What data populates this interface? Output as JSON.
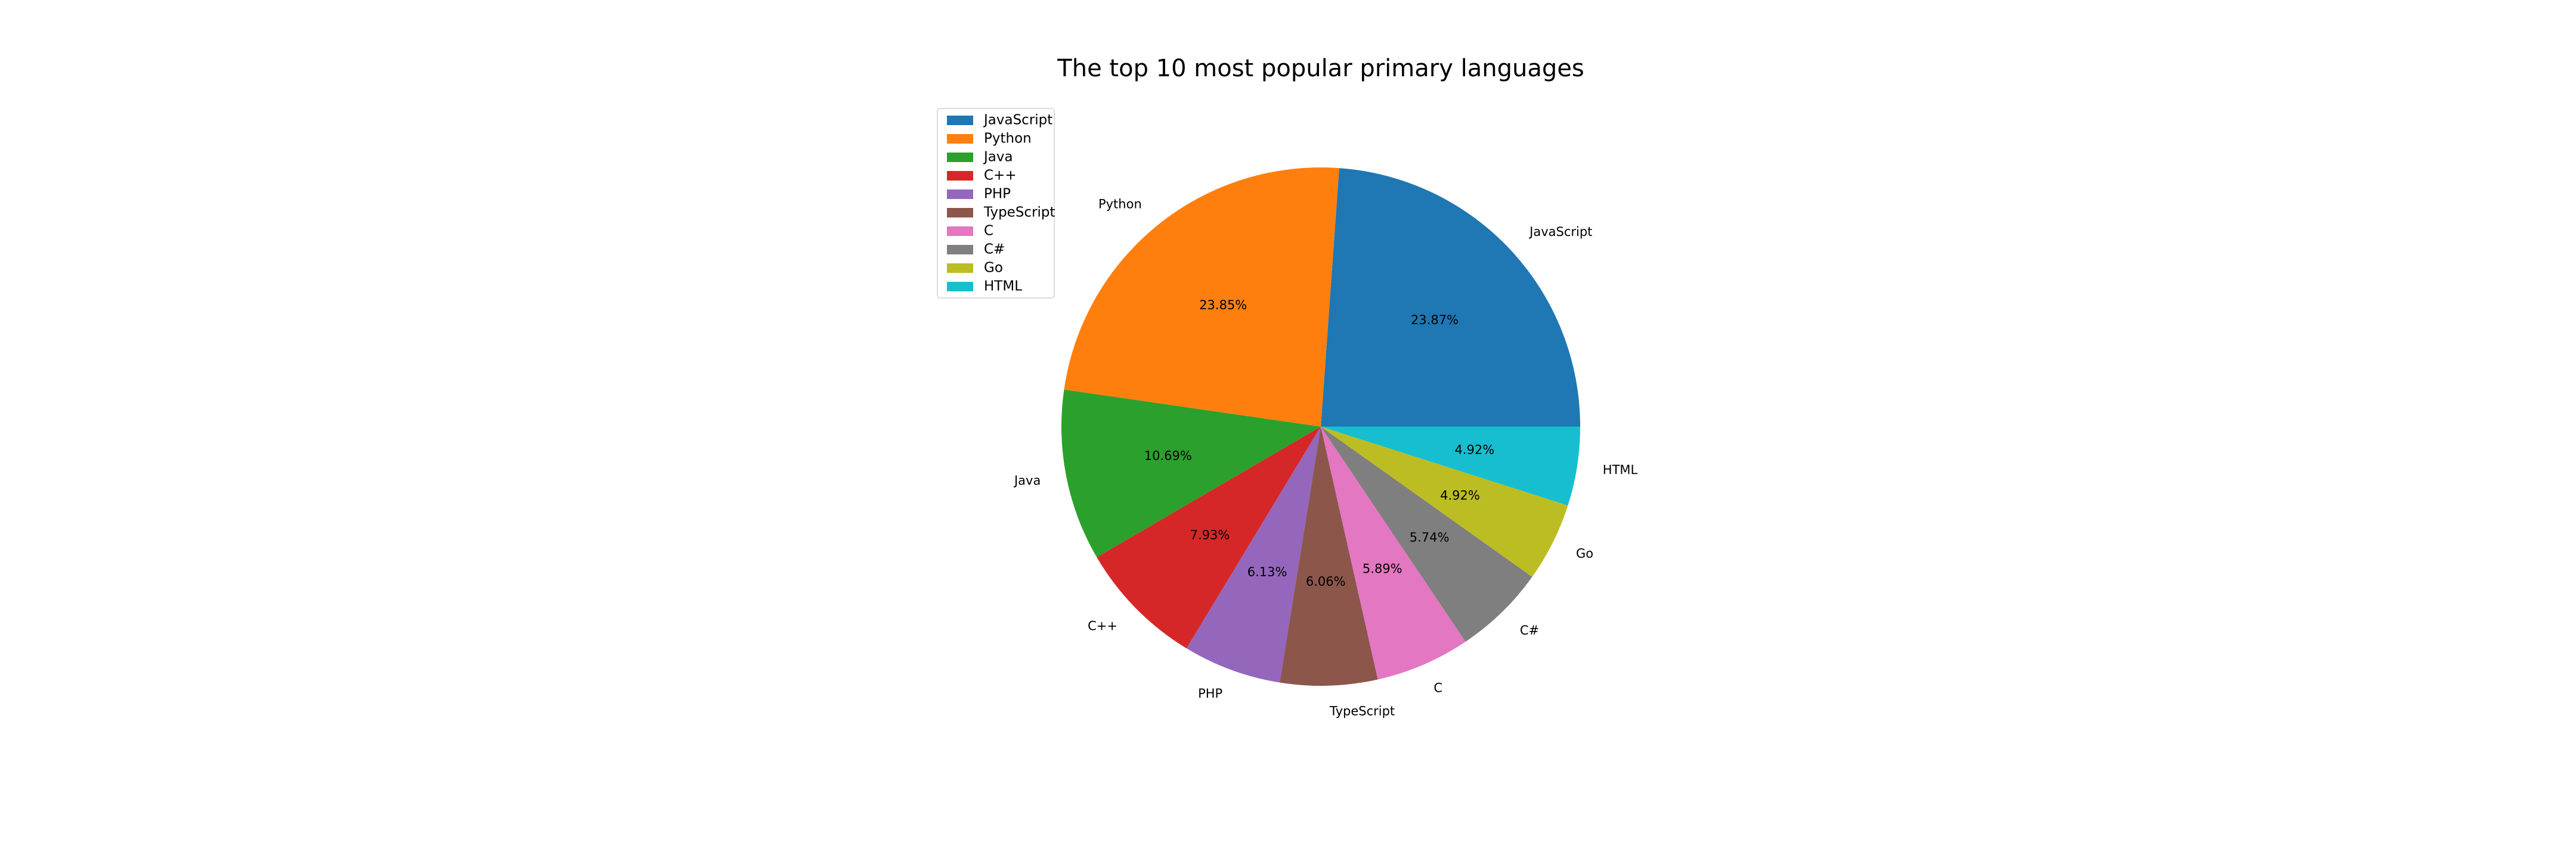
{
  "chart_data": {
    "type": "pie",
    "title": "The top 10 most popular primary languages",
    "legend": "top-left",
    "start_angle_deg": 0,
    "direction": "counterclockwise",
    "slices": [
      {
        "label": "JavaScript",
        "value": 23.87,
        "pct_label": "23.87%",
        "color": "#1f77b4"
      },
      {
        "label": "Python",
        "value": 23.85,
        "pct_label": "23.85%",
        "color": "#ff7f0e"
      },
      {
        "label": "Java",
        "value": 10.69,
        "pct_label": "10.69%",
        "color": "#2ca02c"
      },
      {
        "label": "C++",
        "value": 7.93,
        "pct_label": "7.93%",
        "color": "#d62728"
      },
      {
        "label": "PHP",
        "value": 6.13,
        "pct_label": "6.13%",
        "color": "#9467bd"
      },
      {
        "label": "TypeScript",
        "value": 6.06,
        "pct_label": "6.06%",
        "color": "#8c564b"
      },
      {
        "label": "C",
        "value": 5.89,
        "pct_label": "5.89%",
        "color": "#e377c2"
      },
      {
        "label": "C#",
        "value": 5.74,
        "pct_label": "5.74%",
        "color": "#7f7f7f"
      },
      {
        "label": "Go",
        "value": 4.92,
        "pct_label": "4.92%",
        "color": "#bcbd22"
      },
      {
        "label": "HTML",
        "value": 4.92,
        "pct_label": "4.92%",
        "color": "#17becf"
      }
    ]
  }
}
